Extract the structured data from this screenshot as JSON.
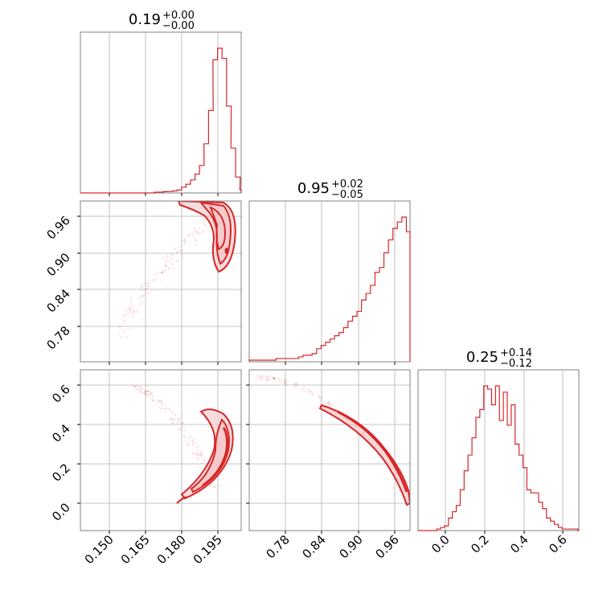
{
  "figure": {
    "type": "corner-plot",
    "color": "#d62728",
    "contour_fill": "#f4c7c8",
    "grid": true
  },
  "chart_data": [
    {
      "type": "histogram",
      "panel": "p1-hist",
      "title": {
        "base": "0.19",
        "sup": "+0.00",
        "sub": "−0.00"
      },
      "xlim": [
        0.14,
        0.206
      ],
      "bins_x": [
        0.1703,
        0.1722,
        0.174,
        0.1759,
        0.1777,
        0.1796,
        0.1815,
        0.1833,
        0.1852,
        0.187,
        0.1889,
        0.1907,
        0.1926,
        0.1944,
        0.1963,
        0.1981,
        0.2,
        0.2018,
        0.2037,
        0.2055
      ],
      "counts": [
        0.5,
        0.6,
        0.9,
        1.0,
        1.4,
        2.0,
        4.0,
        6.0,
        9.0,
        13.0,
        19.0,
        34.0,
        57.0,
        92.0,
        100.0,
        93.0,
        60.0,
        31.0,
        11.0,
        2.0
      ],
      "xticks": [],
      "yticks": []
    },
    {
      "type": "scatter-contour",
      "panel": "p2-joint",
      "xlim": [
        0.14,
        0.206
      ],
      "ylim": [
        0.73,
        0.995
      ],
      "yticks": [
        "0.78",
        "0.84",
        "0.90",
        "0.96"
      ],
      "ytick_values": [
        0.78,
        0.84,
        0.9,
        0.96
      ],
      "xtick_values": [
        0.15,
        0.165,
        0.18,
        0.195
      ]
    },
    {
      "type": "histogram",
      "panel": "p2-hist",
      "title": {
        "base": "0.95",
        "sup": "+0.02",
        "sub": "−0.05"
      },
      "xlim": [
        0.73,
        0.995
      ],
      "bins_x": [
        0.73,
        0.7374,
        0.7448,
        0.7522,
        0.7596,
        0.767,
        0.7744,
        0.7818,
        0.7892,
        0.7966,
        0.804,
        0.8114,
        0.8188,
        0.8262,
        0.8336,
        0.841,
        0.8484,
        0.8558,
        0.8632,
        0.8706,
        0.878,
        0.8854,
        0.8928,
        0.9002,
        0.9076,
        0.915,
        0.9224,
        0.9298,
        0.9372,
        0.9446,
        0.952,
        0.9594,
        0.9668,
        0.9742,
        0.9816,
        0.989
      ],
      "counts": [
        1,
        1,
        1,
        1,
        1,
        1,
        2,
        2,
        2,
        2,
        2,
        3,
        4,
        4,
        5,
        8,
        10,
        12,
        14,
        16,
        18,
        21,
        25,
        28,
        31,
        38,
        42,
        47,
        55,
        58,
        67,
        75,
        82,
        86,
        89,
        80
      ],
      "xticks": [],
      "yticks": []
    },
    {
      "type": "scatter-contour",
      "panel": "p3-joint-a",
      "xlim": [
        0.14,
        0.206
      ],
      "ylim": [
        -0.14,
        0.68
      ],
      "yticks": [
        "0.0",
        "0.2",
        "0.4",
        "0.6"
      ],
      "ytick_values": [
        0.0,
        0.2,
        0.4,
        0.6
      ],
      "xticks": [
        "0.150",
        "0.165",
        "0.180",
        "0.195"
      ],
      "xtick_values": [
        0.15,
        0.165,
        0.18,
        0.195
      ]
    },
    {
      "type": "scatter-contour",
      "panel": "p3-joint-b",
      "xlim": [
        0.73,
        0.995
      ],
      "ylim": [
        -0.14,
        0.68
      ],
      "xticks": [
        "0.78",
        "0.84",
        "0.90",
        "0.96"
      ],
      "xtick_values": [
        0.78,
        0.84,
        0.9,
        0.96
      ],
      "ytick_values": [
        0.0,
        0.2,
        0.4,
        0.6
      ]
    },
    {
      "type": "histogram",
      "panel": "p3-hist",
      "title": {
        "base": "0.25",
        "sup": "+0.14",
        "sub": "−0.12"
      },
      "xlim": [
        -0.14,
        0.68
      ],
      "bins_x": [
        -0.045,
        -0.025,
        -0.005,
        0.015,
        0.035,
        0.055,
        0.075,
        0.095,
        0.115,
        0.135,
        0.155,
        0.175,
        0.195,
        0.215,
        0.235,
        0.255,
        0.275,
        0.295,
        0.315,
        0.335,
        0.355,
        0.375,
        0.395,
        0.415,
        0.435,
        0.455,
        0.475,
        0.495,
        0.515,
        0.535,
        0.555,
        0.575,
        0.595,
        0.615,
        0.635,
        0.655,
        0.675
      ],
      "counts": [
        1,
        2,
        3,
        8,
        12,
        16,
        26,
        38,
        48,
        59,
        72,
        77,
        92,
        90,
        80,
        92,
        70,
        88,
        67,
        80,
        55,
        48,
        40,
        26,
        24,
        24,
        18,
        14,
        8,
        6,
        4,
        2,
        1,
        1,
        1,
        1,
        0
      ],
      "xticks": [
        "0.0",
        "0.2",
        "0.4",
        "0.6"
      ],
      "xtick_values": [
        0.0,
        0.2,
        0.4,
        0.6
      ],
      "yticks": []
    }
  ]
}
